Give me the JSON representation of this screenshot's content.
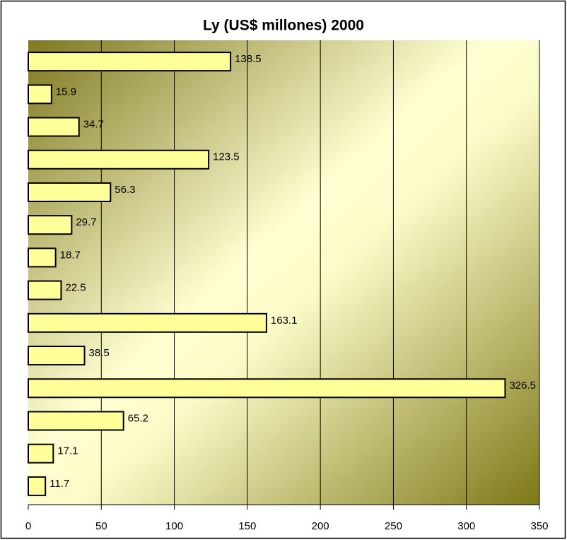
{
  "chart_data": {
    "type": "bar",
    "orientation": "horizontal",
    "title": "Ly (US$ millones) 2000",
    "categories": [
      null,
      null,
      null,
      null,
      null,
      null,
      null,
      null,
      null,
      null,
      null,
      null,
      null,
      null
    ],
    "values": [
      138.5,
      15.9,
      34.7,
      123.5,
      56.3,
      29.7,
      18.7,
      22.5,
      163.1,
      38.5,
      326.5,
      65.2,
      17.1,
      11.7
    ],
    "color": "#ffff99",
    "xlim": [
      0,
      350
    ],
    "xticks": [
      0,
      50,
      100,
      150,
      200,
      250,
      300,
      350
    ],
    "grid": true
  }
}
